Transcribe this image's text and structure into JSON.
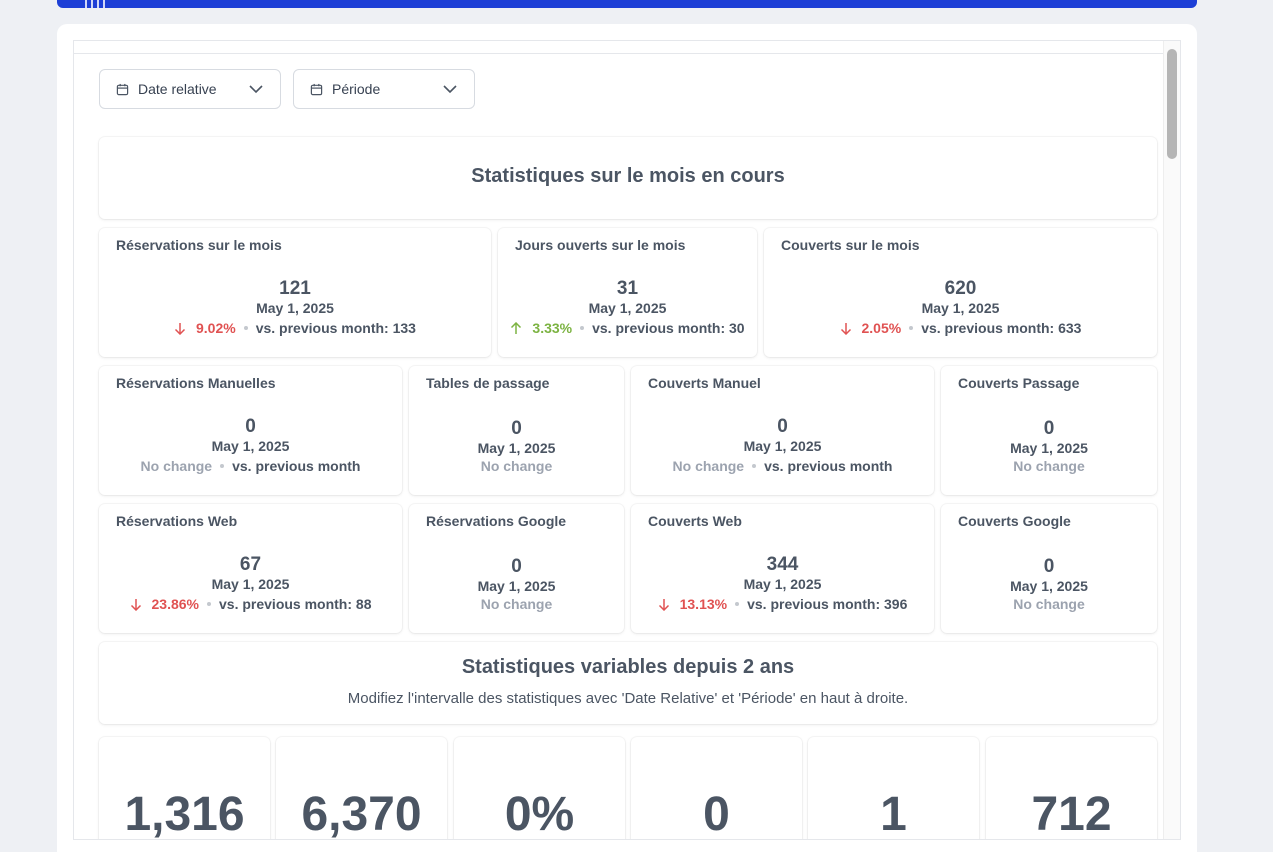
{
  "filters": {
    "relative_date": {
      "label": "Date relative",
      "icon": "calendar-icon",
      "chevron": "chevron-down-icon"
    },
    "period": {
      "label": "Période",
      "icon": "calendar-icon",
      "chevron": "chevron-down-icon"
    }
  },
  "month_section": {
    "title": "Statistiques sur le mois en cours"
  },
  "row1": [
    {
      "title": "Réservations sur le mois",
      "value": "121",
      "date": "May 1, 2025",
      "trend": "down",
      "pct": "9.02%",
      "compare": "vs. previous month: 133"
    },
    {
      "title": "Jours ouverts sur le mois",
      "value": "31",
      "date": "May 1, 2025",
      "trend": "up",
      "pct": "3.33%",
      "compare": "vs. previous month: 30"
    },
    {
      "title": "Couverts sur le mois",
      "value": "620",
      "date": "May 1, 2025",
      "trend": "down",
      "pct": "2.05%",
      "compare": "vs. previous month: 633"
    }
  ],
  "row2": [
    {
      "title": "Réservations Manuelles",
      "value": "0",
      "date": "May 1, 2025",
      "status": "No change",
      "compare": "vs. previous month"
    },
    {
      "title": "Tables de passage",
      "value": "0",
      "date": "May 1, 2025",
      "status": "No change"
    },
    {
      "title": "Couverts Manuel",
      "value": "0",
      "date": "May 1, 2025",
      "status": "No change",
      "compare": "vs. previous month"
    },
    {
      "title": "Couverts Passage",
      "value": "0",
      "date": "May 1, 2025",
      "status": "No change"
    }
  ],
  "row3": [
    {
      "title": "Réservations Web",
      "value": "67",
      "date": "May 1, 2025",
      "trend": "down",
      "pct": "23.86%",
      "compare": "vs. previous month: 88"
    },
    {
      "title": "Réservations Google",
      "value": "0",
      "date": "May 1, 2025",
      "status": "No change"
    },
    {
      "title": "Couverts Web",
      "value": "344",
      "date": "May 1, 2025",
      "trend": "down",
      "pct": "13.13%",
      "compare": "vs. previous month: 396"
    },
    {
      "title": "Couverts Google",
      "value": "0",
      "date": "May 1, 2025",
      "status": "No change"
    }
  ],
  "variable_section": {
    "title": "Statistiques variables depuis 2 ans",
    "subtitle": "Modifiez l'intervalle des statistiques avec 'Date Relative' et 'Période' en haut à droite."
  },
  "big_numbers": [
    "1,316",
    "6,370",
    "0%",
    "0",
    "1",
    "712"
  ],
  "colors": {
    "brand": "#1d3fd6",
    "down": "#e05252",
    "up": "#7cb342",
    "muted": "#9ca3af"
  }
}
